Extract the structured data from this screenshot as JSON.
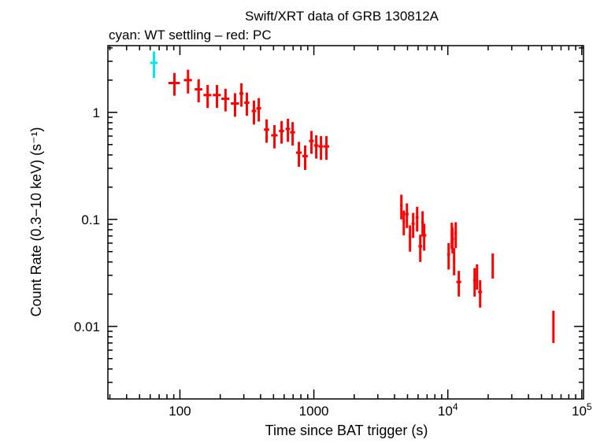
{
  "chart_data": {
    "type": "scatter",
    "title": "Swift/XRT data of GRB 130812A",
    "subtitle": "cyan: WT settling – red: PC",
    "xlabel": "Time since BAT trigger (s)",
    "ylabel": "Count Rate (0.3−10 keV) (s⁻¹)",
    "xscale": "log",
    "yscale": "log",
    "xlim": [
      29,
      103000
    ],
    "ylim": [
      0.0021,
      4.2
    ],
    "grid": false,
    "x_tick_labels": [
      {
        "value": 100,
        "label": "100"
      },
      {
        "value": 1000,
        "label": "1000"
      },
      {
        "value": 10000,
        "label": "10",
        "exp": "4"
      },
      {
        "value": 100000,
        "label": "10",
        "exp": "5"
      }
    ],
    "y_tick_labels": [
      {
        "value": 0.01,
        "label": "0.01"
      },
      {
        "value": 0.1,
        "label": "0.1"
      },
      {
        "value": 1,
        "label": "1"
      }
    ],
    "series": [
      {
        "mode": "WT settling",
        "color": "#00e5ee",
        "points": [
          {
            "x": 64,
            "xerr": 4,
            "y": 2.9,
            "yerr": 0.8
          }
        ]
      },
      {
        "mode": "PC",
        "color": "#ff0000",
        "points": [
          {
            "x": 91,
            "xerr": 9,
            "y": 1.88,
            "yerr": 0.45
          },
          {
            "x": 115,
            "xerr": 8,
            "y": 2.0,
            "yerr": 0.5
          },
          {
            "x": 138,
            "xerr": 9,
            "y": 1.64,
            "yerr": 0.4
          },
          {
            "x": 161,
            "xerr": 11,
            "y": 1.45,
            "yerr": 0.35
          },
          {
            "x": 189,
            "xerr": 13,
            "y": 1.45,
            "yerr": 0.35
          },
          {
            "x": 219,
            "xerr": 15,
            "y": 1.34,
            "yerr": 0.32
          },
          {
            "x": 258,
            "xerr": 18,
            "y": 1.21,
            "yerr": 0.3
          },
          {
            "x": 288,
            "xerr": 10,
            "y": 1.5,
            "yerr": 0.37
          },
          {
            "x": 316,
            "xerr": 14,
            "y": 1.23,
            "yerr": 0.3
          },
          {
            "x": 357,
            "xerr": 14,
            "y": 1.03,
            "yerr": 0.26
          },
          {
            "x": 388,
            "xerr": 16,
            "y": 1.09,
            "yerr": 0.27
          },
          {
            "x": 444,
            "xerr": 20,
            "y": 0.69,
            "yerr": 0.17
          },
          {
            "x": 508,
            "xerr": 28,
            "y": 0.61,
            "yerr": 0.15
          },
          {
            "x": 574,
            "xerr": 25,
            "y": 0.67,
            "yerr": 0.16
          },
          {
            "x": 640,
            "xerr": 25,
            "y": 0.7,
            "yerr": 0.17
          },
          {
            "x": 694,
            "xerr": 30,
            "y": 0.65,
            "yerr": 0.16
          },
          {
            "x": 773,
            "xerr": 38,
            "y": 0.42,
            "yerr": 0.11
          },
          {
            "x": 861,
            "xerr": 40,
            "y": 0.39,
            "yerr": 0.1
          },
          {
            "x": 959,
            "xerr": 40,
            "y": 0.54,
            "yerr": 0.13
          },
          {
            "x": 1042,
            "xerr": 40,
            "y": 0.49,
            "yerr": 0.12
          },
          {
            "x": 1130,
            "xerr": 45,
            "y": 0.48,
            "yerr": 0.12
          },
          {
            "x": 1241,
            "xerr": 60,
            "y": 0.48,
            "yerr": 0.12
          },
          {
            "x": 4500,
            "xerr": 100,
            "y": 0.135,
            "yerr": 0.035
          },
          {
            "x": 4690,
            "xerr": 100,
            "y": 0.096,
            "yerr": 0.025
          },
          {
            "x": 4950,
            "xerr": 150,
            "y": 0.112,
            "yerr": 0.029
          },
          {
            "x": 5220,
            "xerr": 120,
            "y": 0.069,
            "yerr": 0.019
          },
          {
            "x": 5510,
            "xerr": 150,
            "y": 0.091,
            "yerr": 0.024
          },
          {
            "x": 5900,
            "xerr": 150,
            "y": 0.104,
            "yerr": 0.027
          },
          {
            "x": 6230,
            "xerr": 200,
            "y": 0.056,
            "yerr": 0.016
          },
          {
            "x": 6480,
            "xerr": 150,
            "y": 0.094,
            "yerr": 0.025
          },
          {
            "x": 6660,
            "xerr": 250,
            "y": 0.071,
            "yerr": 0.02
          },
          {
            "x": 10140,
            "xerr": 250,
            "y": 0.047,
            "yerr": 0.013
          },
          {
            "x": 10700,
            "xerr": 200,
            "y": 0.073,
            "yerr": 0.02
          },
          {
            "x": 10840,
            "xerr": 300,
            "y": 0.066,
            "yerr": 0.018
          },
          {
            "x": 11140,
            "xerr": 200,
            "y": 0.042,
            "yerr": 0.012
          },
          {
            "x": 11450,
            "xerr": 250,
            "y": 0.074,
            "yerr": 0.02
          },
          {
            "x": 12080,
            "xerr": 500,
            "y": 0.026,
            "yerr": 0.007
          },
          {
            "x": 15850,
            "xerr": 400,
            "y": 0.027,
            "yerr": 0.008
          },
          {
            "x": 16510,
            "xerr": 300,
            "y": 0.03,
            "yerr": 0.008
          },
          {
            "x": 17420,
            "xerr": 600,
            "y": 0.021,
            "yerr": 0.006
          },
          {
            "x": 21630,
            "xerr": 300,
            "y": 0.038,
            "yerr": 0.01
          },
          {
            "x": 61400,
            "xerr": 500,
            "y": 0.0105,
            "yerr": 0.0035
          }
        ]
      }
    ]
  }
}
